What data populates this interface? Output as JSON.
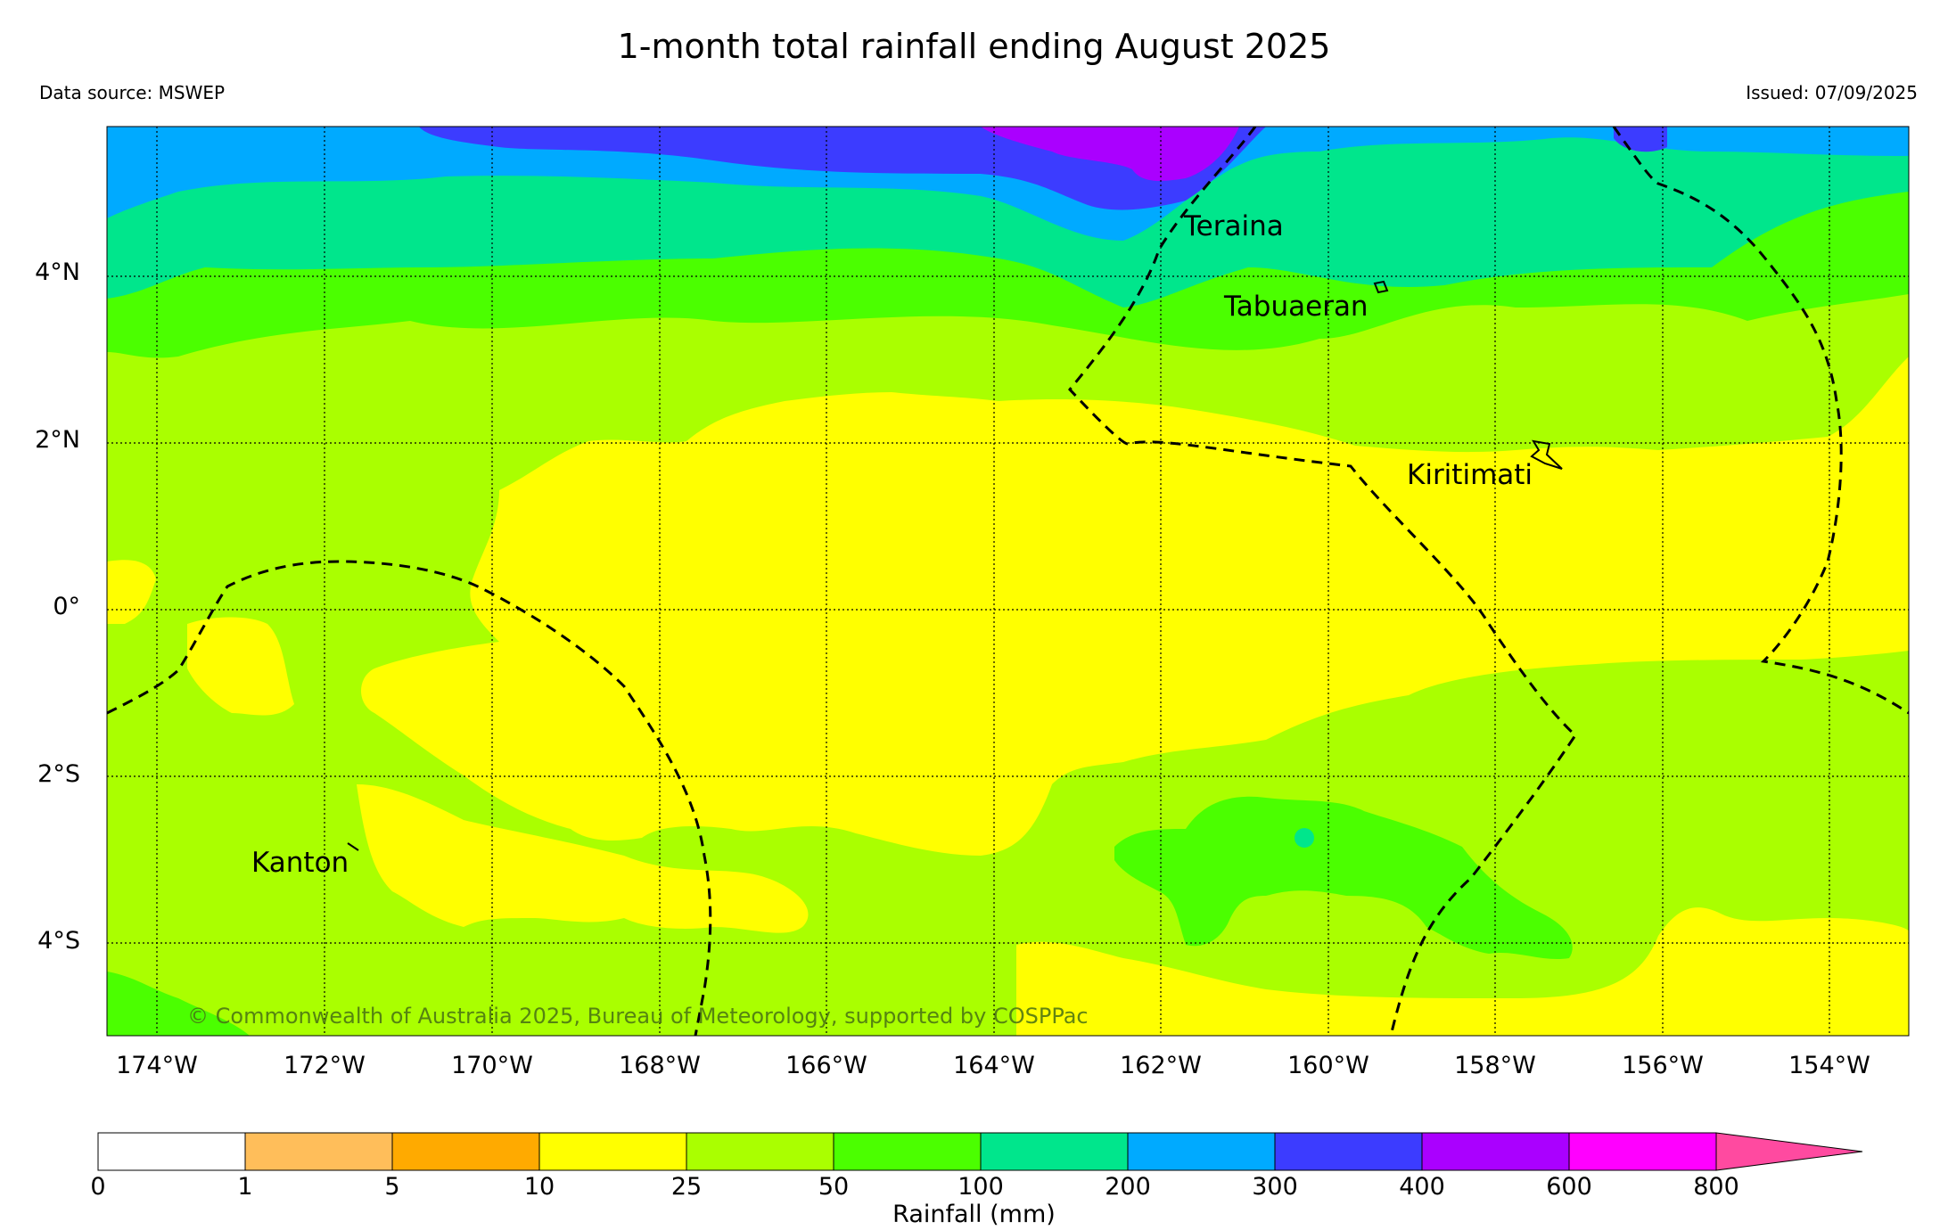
{
  "title": "1-month total rainfall ending August 2025",
  "data_source": "Data source: MSWEP",
  "issued": "Issued: 07/09/2025",
  "copyright": "© Commonwealth of Australia 2025, Bureau of Meteorology, supported by COSPPac",
  "lat_labels": [
    "4°N",
    "2°N",
    "0°",
    "2°S",
    "4°S"
  ],
  "lon_labels": [
    "174°W",
    "172°W",
    "170°W",
    "168°W",
    "166°W",
    "164°W",
    "162°W",
    "160°W",
    "158°W",
    "156°W",
    "154°W"
  ],
  "places": [
    "Teraina",
    "Tabuaeran",
    "Kiritimati",
    "Kanton"
  ],
  "colorbar": {
    "label": "Rainfall (mm)",
    "ticks": [
      "0",
      "1",
      "5",
      "10",
      "25",
      "50",
      "100",
      "200",
      "300",
      "400",
      "600",
      "800"
    ],
    "colors": [
      "#ffffff",
      "#ffbe5a",
      "#ffaa00",
      "#ffff00",
      "#aaff00",
      "#4bff00",
      "#00e68c",
      "#00aaff",
      "#3c3cff",
      "#aa00ff",
      "#ff00ff",
      "#ff4aa0"
    ]
  }
}
